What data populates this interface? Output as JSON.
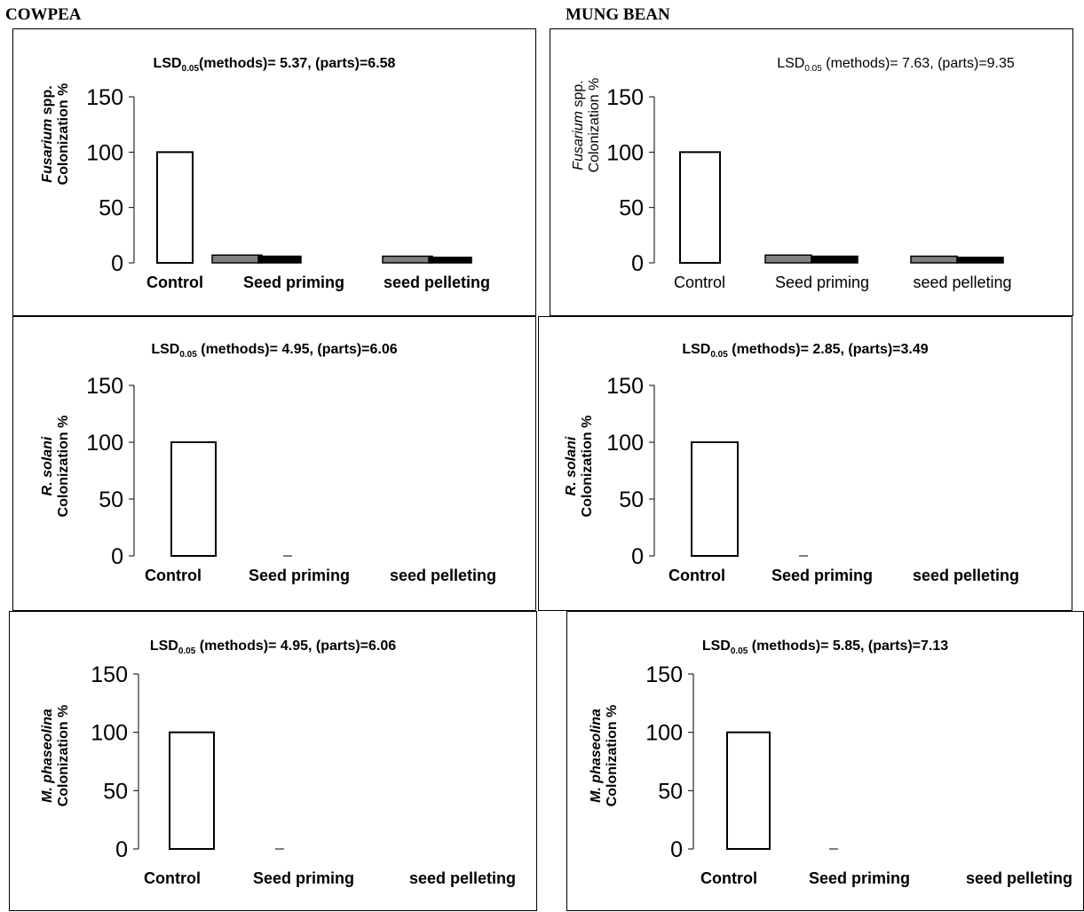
{
  "crops": {
    "left": "COWPEA",
    "right": "MUNG BEAN"
  },
  "legend_note": "",
  "chart_data": [
    {
      "id": "cowpea-fusarium",
      "type": "bar",
      "bold": true,
      "title": {
        "prefix": "LSD",
        "sub": "0.05",
        "text": "(methods)= 5.37, (parts)=6.58"
      },
      "ylabel_organism": "Fusarium",
      "ylabel_suffix": " spp.",
      "ylabel_line2": "Colonization %",
      "categories": [
        "Control",
        "Seed priming",
        "seed pelleting"
      ],
      "yticks": [
        0,
        50,
        100,
        150
      ],
      "ylim": [
        0,
        150
      ],
      "series": [
        {
          "values": [
            100,
            null,
            null
          ],
          "color": "#ffffff"
        },
        {
          "values": [
            null,
            7,
            6
          ],
          "color": "#808080"
        },
        {
          "values": [
            null,
            6,
            5
          ],
          "color": "#000000"
        }
      ]
    },
    {
      "id": "mung-fusarium",
      "type": "bar",
      "bold": false,
      "title": {
        "prefix": "LSD",
        "sub": "0.05",
        "text": " (methods)= 7.63, (parts)=9.35"
      },
      "ylabel_organism": "Fusarium",
      "ylabel_suffix": " spp.",
      "ylabel_line2": "Colonization %",
      "categories": [
        "Control",
        "Seed priming",
        "seed pelleting"
      ],
      "yticks": [
        0,
        50,
        100,
        150
      ],
      "ylim": [
        0,
        150
      ],
      "series": [
        {
          "values": [
            100,
            null,
            null
          ],
          "color": "#ffffff"
        },
        {
          "values": [
            null,
            7,
            6
          ],
          "color": "#808080"
        },
        {
          "values": [
            null,
            6,
            5
          ],
          "color": "#000000"
        }
      ]
    },
    {
      "id": "cowpea-rsolani",
      "type": "bar",
      "bold": true,
      "title": {
        "prefix": "LSD",
        "sub": "0.05",
        "text": " (methods)= 4.95, (parts)=6.06"
      },
      "ylabel_organism": "R. solani",
      "ylabel_suffix": "",
      "ylabel_line2": "Colonization %",
      "categories": [
        "Control",
        "Seed priming",
        "seed pelleting"
      ],
      "yticks": [
        0,
        50,
        100,
        150
      ],
      "ylim": [
        0,
        150
      ],
      "series": [
        {
          "values": [
            100,
            null,
            null
          ],
          "color": "#ffffff"
        },
        {
          "values": [
            null,
            0,
            0
          ],
          "color": "#808080"
        },
        {
          "values": [
            null,
            0,
            0
          ],
          "color": "#000000"
        }
      ]
    },
    {
      "id": "mung-rsolani",
      "type": "bar",
      "bold": true,
      "title": {
        "prefix": "LSD",
        "sub": "0.05",
        "text": " (methods)= 2.85, (parts)=3.49"
      },
      "ylabel_organism": "R. solani",
      "ylabel_suffix": "",
      "ylabel_line2": "Colonization %",
      "categories": [
        "Control",
        "Seed priming",
        "seed pelleting"
      ],
      "yticks": [
        0,
        50,
        100,
        150
      ],
      "ylim": [
        0,
        150
      ],
      "series": [
        {
          "values": [
            100,
            null,
            null
          ],
          "color": "#ffffff"
        },
        {
          "values": [
            null,
            0,
            0
          ],
          "color": "#808080"
        },
        {
          "values": [
            null,
            0,
            0
          ],
          "color": "#000000"
        }
      ]
    },
    {
      "id": "cowpea-mphaseolina",
      "type": "bar",
      "bold": true,
      "title": {
        "prefix": "LSD",
        "sub": "0.05",
        "text": " (methods)= 4.95, (parts)=6.06"
      },
      "ylabel_organism": "M. phaseolina",
      "ylabel_suffix": "",
      "ylabel_line2": "Colonization %",
      "categories": [
        "Control",
        "Seed priming",
        "seed pelleting"
      ],
      "yticks": [
        0,
        50,
        100,
        150
      ],
      "ylim": [
        0,
        150
      ],
      "series": [
        {
          "values": [
            100,
            null,
            null
          ],
          "color": "#ffffff"
        },
        {
          "values": [
            null,
            0,
            0
          ],
          "color": "#808080"
        },
        {
          "values": [
            null,
            0,
            0
          ],
          "color": "#000000"
        }
      ]
    },
    {
      "id": "mung-mphaseolina",
      "type": "bar",
      "bold": true,
      "title": {
        "prefix": "LSD",
        "sub": "0.05",
        "text": " (methods)= 5.85, (parts)=7.13"
      },
      "ylabel_organism": "M. phaseolina",
      "ylabel_suffix": "",
      "ylabel_line2": "Colonization %",
      "categories": [
        "Control",
        "Seed priming",
        "seed pelleting"
      ],
      "yticks": [
        0,
        50,
        100,
        150
      ],
      "ylim": [
        0,
        150
      ],
      "series": [
        {
          "values": [
            100,
            null,
            null
          ],
          "color": "#ffffff"
        },
        {
          "values": [
            null,
            0,
            0
          ],
          "color": "#808080"
        },
        {
          "values": [
            null,
            0,
            0
          ],
          "color": "#000000"
        }
      ]
    }
  ]
}
